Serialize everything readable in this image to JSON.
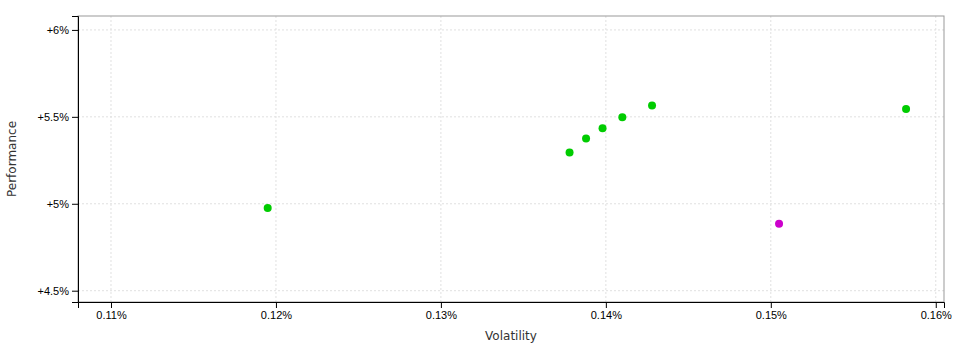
{
  "chart_data": {
    "type": "scatter",
    "xlabel": "Volatility",
    "ylabel": "Performance",
    "xlim": [
      0.00108,
      0.001605
    ],
    "ylim": [
      0.04435,
      0.0608
    ],
    "xticks": [
      {
        "value": 0.0011,
        "label": "0.11%"
      },
      {
        "value": 0.0012,
        "label": "0.12%"
      },
      {
        "value": 0.0013,
        "label": "0.13%"
      },
      {
        "value": 0.0014,
        "label": "0.14%"
      },
      {
        "value": 0.0015,
        "label": "0.15%"
      },
      {
        "value": 0.0016,
        "label": "0.16%"
      }
    ],
    "yticks": [
      {
        "value": 0.045,
        "label": "+4.5%"
      },
      {
        "value": 0.05,
        "label": "+5%"
      },
      {
        "value": 0.055,
        "label": "+5.5%"
      },
      {
        "value": 0.06,
        "label": "+6%"
      }
    ],
    "grid": true,
    "series": [
      {
        "color": "#00cc00",
        "x": [
          0.001195,
          0.001378,
          0.001388,
          0.001398,
          0.00141,
          0.001428,
          0.001582
        ],
        "values": [
          0.04975,
          0.05295,
          0.05375,
          0.05435,
          0.05498,
          0.05565,
          0.05545
        ]
      },
      {
        "color": "#cc00cc",
        "x": [
          0.001505
        ],
        "values": [
          0.04885
        ]
      }
    ]
  }
}
